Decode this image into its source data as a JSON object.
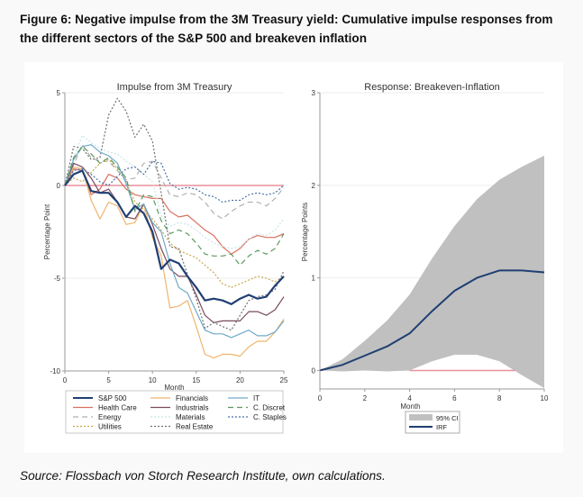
{
  "figure_title": "Figure 6: Negative impulse from the 3M Treasury yield: Cumulative impulse responses from the different sectors of the S&P 500 and breakeven inflation",
  "source": "Source: Flossbach von Storch Research Institute, own calculations.",
  "chart_data": [
    {
      "type": "line",
      "title": "Impulse from 3M Treasury",
      "xlabel": "Month",
      "ylabel": "Percentage Point",
      "xlim": [
        0,
        25
      ],
      "ylim": [
        -10,
        5
      ],
      "xticks": [
        0,
        5,
        10,
        15,
        20,
        25
      ],
      "yticks": [
        5,
        0,
        -5,
        -10
      ],
      "grid": "horizontal",
      "reference_line": {
        "y": 0,
        "color": "#e8909c"
      },
      "x": [
        0,
        1,
        2,
        3,
        4,
        5,
        6,
        7,
        8,
        9,
        10,
        11,
        12,
        13,
        14,
        15,
        16,
        17,
        18,
        19,
        20,
        21,
        22,
        23,
        24,
        25
      ],
      "legend_placement": "bottom",
      "series": [
        {
          "name": "S&P 500",
          "color": "#1f3f73",
          "style": "solid-thick",
          "values": [
            0,
            0.6,
            0.8,
            -0.3,
            -0.4,
            -0.4,
            -0.9,
            -1.7,
            -1.1,
            -1.5,
            -2.5,
            -4.5,
            -4.0,
            -4.2,
            -4.9,
            -5.5,
            -6.2,
            -6.1,
            -6.2,
            -6.4,
            -6.1,
            -5.9,
            -6.1,
            -6.0,
            -5.4,
            -4.9
          ]
        },
        {
          "name": "Health Care",
          "color": "#d9705f",
          "style": "solid",
          "values": [
            0,
            0.9,
            0.8,
            -0.5,
            -0.2,
            0.6,
            0.4,
            -0.2,
            -0.5,
            -0.6,
            -0.7,
            -0.7,
            -1.4,
            -1.7,
            -1.6,
            -2.0,
            -2.4,
            -2.7,
            -3.3,
            -3.7,
            -3.4,
            -2.9,
            -2.7,
            -2.8,
            -2.8,
            -2.6
          ]
        },
        {
          "name": "Energy",
          "color": "#b0b0b0",
          "style": "dashed",
          "values": [
            0,
            1.1,
            2.2,
            1.5,
            1.3,
            1.3,
            0.8,
            0.3,
            0.4,
            1.2,
            1.3,
            0.4,
            -0.5,
            -0.6,
            -0.4,
            -0.5,
            -0.9,
            -1.5,
            -1.8,
            -1.4,
            -1.1,
            -0.9,
            -0.9,
            -1.1,
            -0.7,
            -0.1
          ]
        },
        {
          "name": "Utilities",
          "color": "#c9a84a",
          "style": "dotted",
          "values": [
            0,
            0.4,
            0.2,
            0.7,
            1.2,
            1.4,
            0.9,
            0.2,
            -0.9,
            -1.3,
            -1.8,
            -2.4,
            -3.1,
            -3.5,
            -3.7,
            -3.9,
            -4.3,
            -4.7,
            -5.3,
            -5.5,
            -5.3,
            -5.1,
            -4.9,
            -5.0,
            -5.2,
            -4.9
          ]
        },
        {
          "name": "Financials",
          "color": "#f0b46e",
          "style": "solid",
          "values": [
            0,
            1.0,
            0.9,
            -0.8,
            -1.8,
            -0.9,
            -1.1,
            -2.1,
            -2.0,
            -1.0,
            -2.8,
            -3.8,
            -6.6,
            -6.5,
            -6.2,
            -7.6,
            -9.1,
            -9.3,
            -9.1,
            -9.1,
            -9.2,
            -8.7,
            -8.4,
            -8.4,
            -7.9,
            -7.2
          ]
        },
        {
          "name": "Industrials",
          "color": "#7a4a5e",
          "style": "solid",
          "values": [
            0,
            1.2,
            1.0,
            0.4,
            -0.4,
            -0.2,
            -0.9,
            -1.7,
            -1.8,
            -1.0,
            -2.1,
            -3.4,
            -4.5,
            -4.9,
            -4.9,
            -5.9,
            -7.0,
            -7.4,
            -7.3,
            -7.3,
            -7.3,
            -6.8,
            -6.8,
            -7.0,
            -6.7,
            -6.0
          ]
        },
        {
          "name": "Materials",
          "color": "#c8e6ea",
          "style": "dotted",
          "values": [
            0,
            1.5,
            2.7,
            2.3,
            2.0,
            1.8,
            1.7,
            1.3,
            1.0,
            0.6,
            0.2,
            -1.6,
            -2.2,
            -2.0,
            -2.1,
            -2.4,
            -2.8,
            -3.1,
            -3.3,
            -3.4,
            -3.3,
            -2.9,
            -2.6,
            -2.7,
            -2.4,
            -1.8
          ]
        },
        {
          "name": "Real Estate",
          "color": "#707070",
          "style": "dotted",
          "values": [
            0,
            2.1,
            2.0,
            1.4,
            1.5,
            3.8,
            4.7,
            4.0,
            2.6,
            3.3,
            2.4,
            -0.4,
            -3.3,
            -3.4,
            -4.8,
            -6.1,
            -7.7,
            -7.4,
            -7.6,
            -7.8,
            -7.0,
            -6.2,
            -6.0,
            -5.9,
            -5.6,
            -4.6
          ]
        },
        {
          "name": "IT",
          "color": "#6eaac8",
          "style": "solid",
          "values": [
            0,
            1.4,
            2.1,
            2.2,
            1.8,
            1.6,
            1.2,
            0.1,
            -1.3,
            -1.0,
            -2.0,
            -2.5,
            -4.2,
            -5.5,
            -5.8,
            -6.8,
            -7.8,
            -8.0,
            -8.0,
            -8.2,
            -8.0,
            -7.8,
            -8.1,
            -8.1,
            -7.9,
            -7.3
          ]
        },
        {
          "name": "C. Discret",
          "color": "#5a9a62",
          "style": "dashed",
          "values": [
            0,
            1.5,
            2.1,
            1.7,
            1.2,
            1.5,
            1.0,
            0.4,
            -1.4,
            -0.5,
            -0.6,
            -1.9,
            -2.6,
            -2.4,
            -2.6,
            -3.1,
            -3.7,
            -3.8,
            -3.8,
            -3.7,
            -4.3,
            -3.8,
            -3.5,
            -3.7,
            -3.4,
            -2.6
          ]
        },
        {
          "name": "C. Staples",
          "color": "#4a6fa5",
          "style": "dotted",
          "values": [
            0,
            0.8,
            0.9,
            0.6,
            0.2,
            0.0,
            0.5,
            0.9,
            1.0,
            0.6,
            1.3,
            1.2,
            0.1,
            -0.2,
            -0.1,
            -0.2,
            -0.5,
            -0.6,
            -0.9,
            -0.8,
            -0.8,
            -0.5,
            -0.4,
            -0.5,
            -0.4,
            0.0
          ]
        }
      ]
    },
    {
      "type": "area",
      "title": "Response: Breakeven-Inflation",
      "xlabel": "Month",
      "ylabel": "Percentage Points",
      "xlim": [
        0,
        10
      ],
      "ylim": [
        -0.2,
        3
      ],
      "xticks": [
        0,
        2,
        4,
        6,
        8,
        10
      ],
      "yticks": [
        3,
        2,
        1,
        0
      ],
      "grid": "horizontal",
      "reference_line": {
        "y": 0,
        "x_range": [
          4,
          8.7
        ],
        "color": "#e8909c"
      },
      "x": [
        0,
        1,
        2,
        3,
        4,
        5,
        6,
        7,
        8,
        9,
        10
      ],
      "legend_placement": "bottom",
      "series": [
        {
          "name": "IRF",
          "color": "#1f3f73",
          "values": [
            0,
            0.06,
            0.16,
            0.26,
            0.4,
            0.64,
            0.86,
            1.0,
            1.08,
            1.08,
            1.06
          ]
        },
        {
          "name": "95% CI",
          "color": "#c0c0c0",
          "type": "band",
          "upper": [
            0,
            0.12,
            0.32,
            0.54,
            0.82,
            1.21,
            1.56,
            1.85,
            2.06,
            2.2,
            2.32
          ],
          "lower": [
            0,
            -0.01,
            0,
            -0.01,
            0,
            0.1,
            0.17,
            0.17,
            0.1,
            -0.05,
            -0.19
          ]
        }
      ]
    }
  ]
}
